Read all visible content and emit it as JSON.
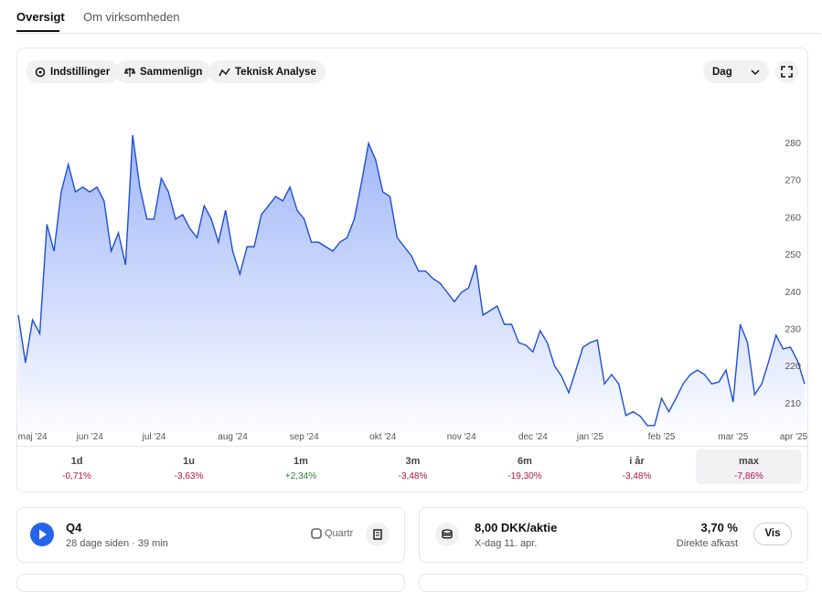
{
  "tabs": [
    "Oversigt",
    "Om virksomheden"
  ],
  "toolbar": {
    "buttons": [
      "Indstillinger",
      "Sammenlign",
      "Teknisk Analyse"
    ],
    "interval": "Dag"
  },
  "chart_data": {
    "type": "area",
    "color": "#1d4ed8",
    "categories": [
      null,
      null,
      "maj '24",
      null,
      null,
      null,
      null,
      null,
      null,
      null,
      "jun '24",
      null,
      null,
      null,
      null,
      null,
      null,
      null,
      null,
      "jul '24",
      null,
      null,
      null,
      null,
      null,
      null,
      null,
      null,
      null,
      null,
      "aug '24",
      null,
      null,
      null,
      null,
      null,
      null,
      null,
      null,
      null,
      "sep '24",
      null,
      null,
      null,
      null,
      null,
      null,
      null,
      null,
      null,
      null,
      "okt '24",
      null,
      null,
      null,
      null,
      null,
      null,
      null,
      null,
      null,
      null,
      "nov '24",
      null,
      null,
      null,
      null,
      null,
      null,
      null,
      null,
      null,
      "dec '24",
      null,
      null,
      null,
      null,
      null,
      null,
      null,
      "jan '25",
      null,
      null,
      null,
      null,
      null,
      null,
      null,
      null,
      null,
      "feb '25",
      null,
      null,
      null,
      null,
      null,
      null,
      null,
      null,
      null,
      "mar '25",
      null,
      null,
      null,
      null,
      null,
      null,
      null,
      null,
      null,
      "apr '25"
    ],
    "values": [
      233.6,
      220.8,
      232.3,
      228.6,
      258,
      250.8,
      266.7,
      274.1,
      266.7,
      268,
      266.7,
      268,
      264.3,
      250.8,
      255.7,
      247.1,
      282,
      268,
      259.4,
      259.4,
      270.4,
      266.7,
      259.4,
      260.6,
      256.9,
      254.4,
      263,
      259.4,
      253.2,
      261.8,
      250.8,
      244.6,
      252,
      252,
      260.6,
      263,
      265.5,
      264.3,
      268,
      261.8,
      259.4,
      253.2,
      253.2,
      252,
      250.8,
      253.2,
      254.4,
      259.4,
      269.2,
      279.8,
      275.3,
      266.7,
      265.5,
      254.4,
      252,
      249.5,
      245.4,
      245.4,
      243.4,
      242.2,
      239.7,
      237.2,
      239.7,
      240.9,
      247.1,
      233.6,
      234.8,
      236,
      231.1,
      231.1,
      226.2,
      225.5,
      223.7,
      229.4,
      226.2,
      220,
      217.1,
      212.7,
      218.8,
      225,
      226.2,
      226.9,
      215.1,
      217.6,
      215.1,
      206.6,
      207.6,
      206.4,
      203.9,
      203.9,
      211.2,
      207.6,
      211.2,
      215.1,
      217.6,
      218.8,
      217.6,
      215.1,
      215.6,
      218.8,
      210.2,
      231.1,
      226.2,
      212.2,
      215.1,
      221.3,
      228.2,
      224.5,
      225,
      221.3,
      215.1
    ],
    "ylim": [
      202,
      294
    ],
    "yticks": [
      210,
      220,
      230,
      240,
      250,
      260,
      270,
      280
    ]
  },
  "periods": [
    {
      "label": "1d",
      "change": "-0,71%",
      "color": "#b3124e"
    },
    {
      "label": "1u",
      "change": "-3,63%",
      "color": "#b3124e"
    },
    {
      "label": "1m",
      "change": "+2,34%",
      "color": "#2e7d32"
    },
    {
      "label": "3m",
      "change": "-3,48%",
      "color": "#b3124e"
    },
    {
      "label": "6m",
      "change": "-19,30%",
      "color": "#b3124e"
    },
    {
      "label": "i år",
      "change": "-3,48%",
      "color": "#b3124e"
    },
    {
      "label": "max",
      "change": "-7,86%",
      "color": "#b3124e"
    }
  ],
  "report": {
    "title": "Q4",
    "subtitle": "28 dage siden · 39 min",
    "source": "Quartr"
  },
  "dividend": {
    "title": "8,00 DKK/aktie",
    "subtitle": "X-dag 11. apr.",
    "yield": "3,70 %",
    "yield_label": "Direkte afkast",
    "button": "Vis"
  }
}
